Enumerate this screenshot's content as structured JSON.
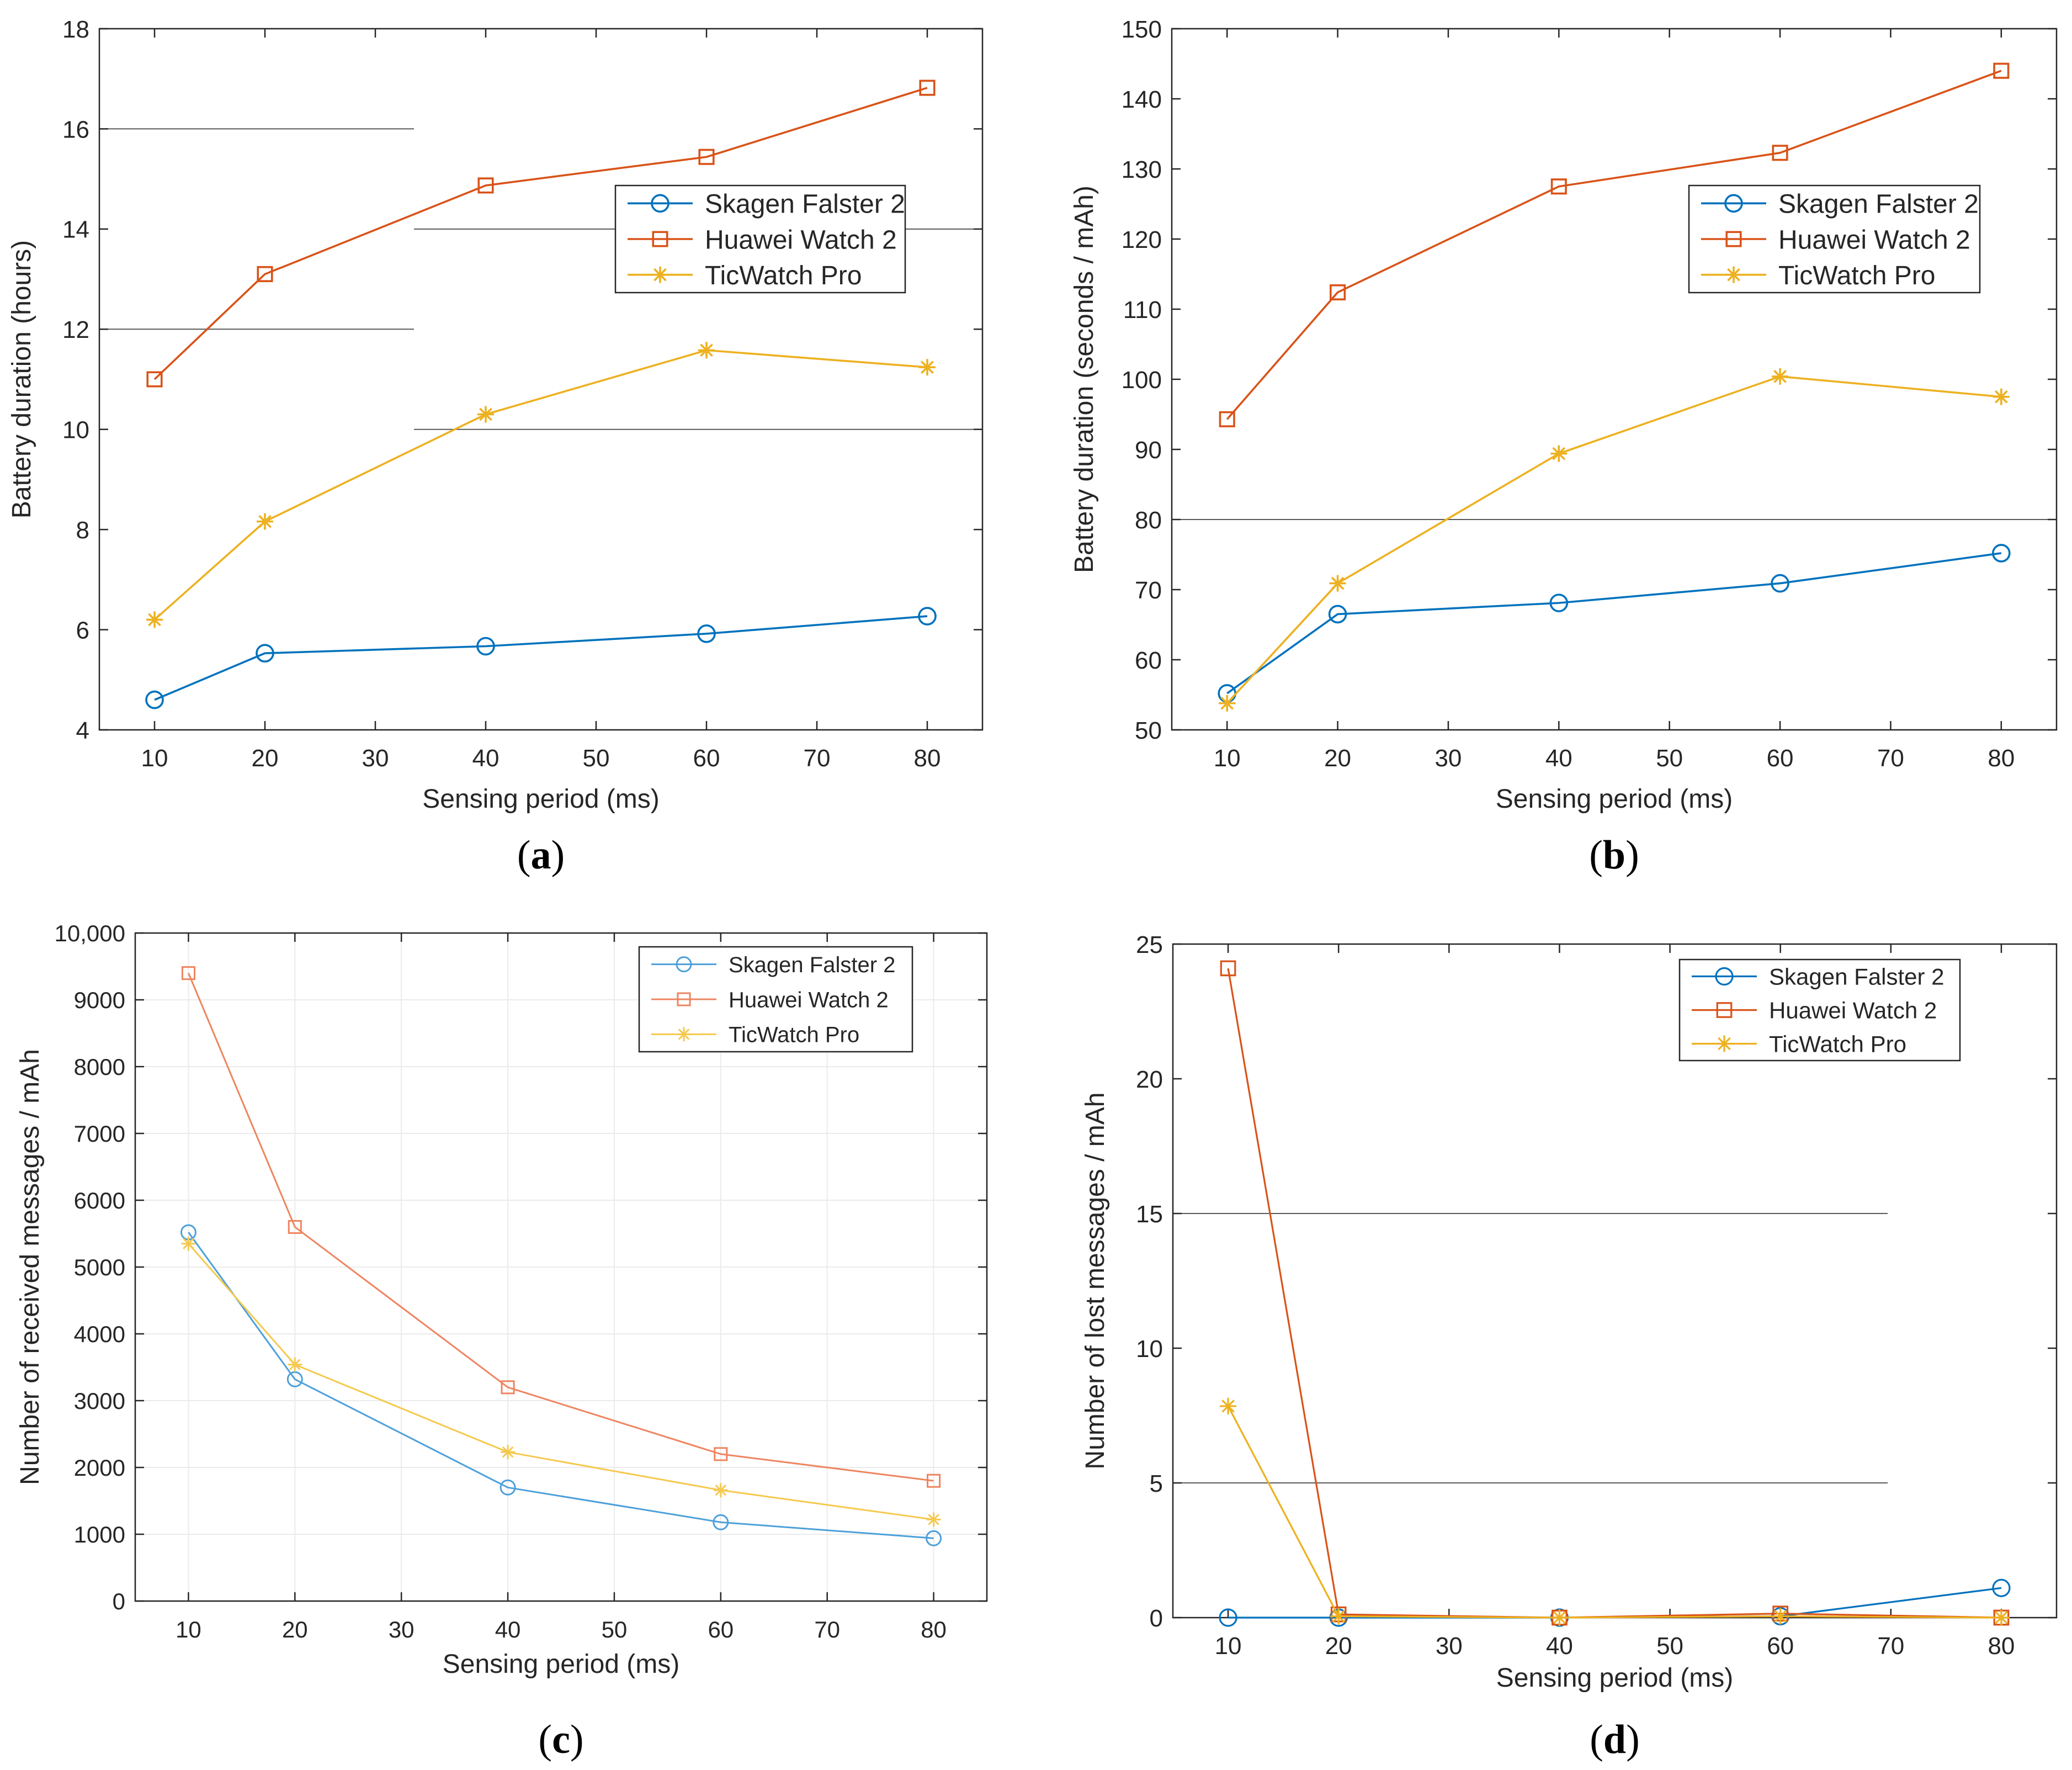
{
  "chart_data": [
    {
      "type": "line",
      "panel_label": "(a)",
      "panel_letter": "a",
      "title": "",
      "xlabel": "Sensing period (ms)",
      "ylabel": "Battery duration (hours)",
      "xlim": [
        5,
        85
      ],
      "ylim": [
        4,
        18
      ],
      "xticks": [
        10,
        20,
        30,
        40,
        50,
        60,
        70,
        80
      ],
      "yticks": [
        4,
        6,
        8,
        10,
        12,
        14,
        16,
        18
      ],
      "x": [
        10,
        20,
        40,
        60,
        80
      ],
      "legend_position": "top-right",
      "series": [
        {
          "name": "Skagen Falster 2",
          "color": "#0072BD",
          "marker": "circle",
          "values": [
            4.6,
            5.53,
            5.67,
            5.92,
            6.27
          ]
        },
        {
          "name": "Huawei Watch 2",
          "color": "#D95319",
          "marker": "square",
          "values": [
            11.0,
            13.1,
            14.87,
            15.44,
            16.82
          ]
        },
        {
          "name": "TicWatch Pro",
          "color": "#EDB120",
          "marker": "asterisk",
          "values": [
            6.2,
            8.16,
            10.3,
            11.58,
            11.24
          ]
        }
      ]
    },
    {
      "type": "line",
      "panel_label": "(b)",
      "panel_letter": "b",
      "title": "",
      "xlabel": "Sensing period (ms)",
      "ylabel": "Battery duration (seconds / mAh)",
      "xlim": [
        5,
        85
      ],
      "ylim": [
        50,
        150
      ],
      "xticks": [
        10,
        20,
        30,
        40,
        50,
        60,
        70,
        80
      ],
      "yticks": [
        50,
        60,
        70,
        80,
        90,
        100,
        110,
        120,
        130,
        140,
        150
      ],
      "x": [
        10,
        20,
        40,
        60,
        80
      ],
      "legend_position": "top-right",
      "series": [
        {
          "name": "Skagen Falster 2",
          "color": "#0072BD",
          "marker": "circle",
          "values": [
            55.2,
            66.5,
            68.1,
            70.9,
            75.2
          ]
        },
        {
          "name": "Huawei Watch 2",
          "color": "#D95319",
          "marker": "square",
          "values": [
            94.3,
            112.4,
            127.5,
            132.3,
            144.0
          ]
        },
        {
          "name": "TicWatch Pro",
          "color": "#EDB120",
          "marker": "asterisk",
          "values": [
            53.8,
            70.9,
            89.4,
            100.4,
            97.5
          ]
        }
      ]
    },
    {
      "type": "line",
      "panel_label": "(c)",
      "panel_letter": "c",
      "title": "",
      "xlabel": "Sensing period (ms)",
      "ylabel": "Number of received messages / mAh",
      "xlim": [
        5,
        85
      ],
      "ylim": [
        0,
        10000
      ],
      "xticks": [
        10,
        20,
        30,
        40,
        50,
        60,
        70,
        80
      ],
      "yticks": [
        0,
        1000,
        2000,
        3000,
        4000,
        5000,
        6000,
        7000,
        8000,
        9000,
        10000
      ],
      "ytick_labels": [
        "0",
        "1000",
        "2000",
        "3000",
        "4000",
        "5000",
        "6000",
        "7000",
        "8000",
        "9000",
        "10,000"
      ],
      "x": [
        10,
        20,
        40,
        60,
        80
      ],
      "legend_position": "top-right",
      "series": [
        {
          "name": "Skagen Falster 2",
          "color": "#4DA0DA",
          "marker": "circle",
          "values": [
            5520,
            3320,
            1700,
            1180,
            940
          ]
        },
        {
          "name": "Huawei Watch 2",
          "color": "#EE8560",
          "marker": "square",
          "values": [
            9400,
            5600,
            3200,
            2200,
            1800
          ]
        },
        {
          "name": "TicWatch Pro",
          "color": "#F5C94E",
          "marker": "asterisk",
          "values": [
            5350,
            3540,
            2230,
            1660,
            1220
          ]
        }
      ]
    },
    {
      "type": "line",
      "panel_label": "(d)",
      "panel_letter": "d",
      "title": "",
      "xlabel": "Sensing period (ms)",
      "ylabel": "Number of lost messages / mAh",
      "xlim": [
        5,
        85
      ],
      "ylim": [
        0,
        25
      ],
      "xticks": [
        10,
        20,
        30,
        40,
        50,
        60,
        70,
        80
      ],
      "yticks": [
        0,
        5,
        10,
        15,
        20,
        25
      ],
      "x": [
        10,
        20,
        40,
        60,
        80
      ],
      "legend_position": "top-right",
      "series": [
        {
          "name": "Skagen Falster 2",
          "color": "#0072BD",
          "marker": "circle",
          "values": [
            0,
            0,
            0,
            0.05,
            1.1
          ]
        },
        {
          "name": "Huawei Watch 2",
          "color": "#D95319",
          "marker": "square",
          "values": [
            24.1,
            0.12,
            0,
            0.15,
            0
          ]
        },
        {
          "name": "TicWatch Pro",
          "color": "#EDB120",
          "marker": "asterisk",
          "values": [
            7.85,
            0.05,
            0,
            0.05,
            0
          ]
        }
      ]
    }
  ]
}
